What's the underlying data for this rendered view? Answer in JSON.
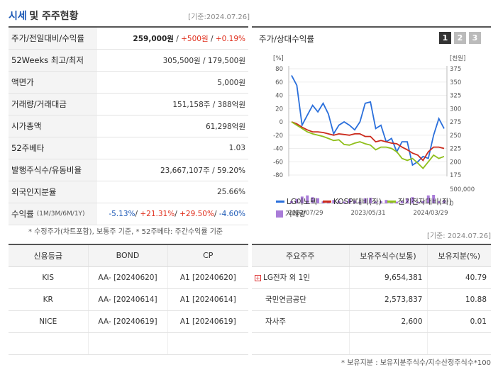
{
  "header": {
    "title_main": "시세",
    "title_sub": "및 주주현황",
    "asof": "[기준:2024.07.26]"
  },
  "summary": [
    {
      "label": "주가/전일대비/수익률",
      "parts": [
        {
          "text": "259,000원",
          "cls": "bold"
        },
        {
          "text": " / ",
          "cls": ""
        },
        {
          "text": "+500원",
          "cls": "red"
        },
        {
          "text": " / ",
          "cls": ""
        },
        {
          "text": "+0.19%",
          "cls": "red"
        }
      ]
    },
    {
      "label": "52Weeks 최고/최저",
      "parts": [
        {
          "text": "305,500원 / 179,500원",
          "cls": ""
        }
      ]
    },
    {
      "label": "액면가",
      "parts": [
        {
          "text": "5,000원",
          "cls": ""
        }
      ]
    },
    {
      "label": "거래량/거래대금",
      "parts": [
        {
          "text": "151,158주 / 388억원",
          "cls": ""
        }
      ]
    },
    {
      "label": "시가총액",
      "parts": [
        {
          "text": "61,298억원",
          "cls": ""
        }
      ]
    },
    {
      "label": "52주베타",
      "parts": [
        {
          "text": "1.03",
          "cls": ""
        }
      ]
    },
    {
      "label": "발행주식수/유동비율",
      "parts": [
        {
          "text": "23,667,107주 / 59.20%",
          "cls": ""
        }
      ]
    },
    {
      "label": "외국인지분율",
      "parts": [
        {
          "text": "25.66%",
          "cls": ""
        }
      ]
    },
    {
      "label": "수익률",
      "label_small": "(1M/3M/6M/1Y)",
      "parts": [
        {
          "text": "-5.13%",
          "cls": "blue"
        },
        {
          "text": "/ ",
          "cls": ""
        },
        {
          "text": "+21.31%",
          "cls": "red"
        },
        {
          "text": "/ ",
          "cls": ""
        },
        {
          "text": "+29.50%",
          "cls": "red"
        },
        {
          "text": "/ ",
          "cls": ""
        },
        {
          "text": "-4.60%",
          "cls": "blue"
        }
      ]
    }
  ],
  "note_summary": "* 수정주가(차트포함), 보통주 기준, * 52주베타: 주간수익률 기준",
  "chart_panel": {
    "title": "주가/상대수익률",
    "pages": [
      "1",
      "2",
      "3"
    ],
    "active_page": 0
  },
  "chart_data": {
    "type": "line",
    "left_axis": {
      "unit": "[%]",
      "min": -80,
      "max": 80,
      "ticks": [
        80,
        60,
        40,
        20,
        0,
        -20,
        -40,
        -60,
        -80
      ]
    },
    "right_axis": {
      "unit": "[천원]",
      "min": 175,
      "max": 375,
      "ticks": [
        375,
        350,
        325,
        300,
        275,
        250,
        225,
        200,
        175
      ]
    },
    "volume_axis": {
      "ticks": [
        "500,000",
        "0"
      ],
      "max": 500000
    },
    "x_labels": [
      "2022/07/29",
      "2023/05/31",
      "2024/03/29"
    ],
    "series": [
      {
        "name": "LG이노텍",
        "color": "#2a6fdb",
        "axis": "left",
        "values": [
          70,
          55,
          -5,
          10,
          25,
          15,
          28,
          12,
          -18,
          -5,
          0,
          -5,
          -12,
          0,
          28,
          30,
          -10,
          -5,
          -30,
          -25,
          -45,
          -30,
          -30,
          -65,
          -60,
          -52,
          -55,
          -20,
          5,
          -10
        ]
      },
      {
        "name": "KOSPI대비(좌)",
        "color": "#cc2b1d",
        "axis": "left",
        "values": [
          0,
          -3,
          -8,
          -12,
          -15,
          -15,
          -16,
          -18,
          -20,
          -18,
          -19,
          -20,
          -18,
          -18,
          -22,
          -22,
          -30,
          -28,
          -30,
          -32,
          -33,
          -38,
          -42,
          -47,
          -50,
          -58,
          -45,
          -38,
          -38,
          -40
        ]
      },
      {
        "name": "전기전자대비(좌)",
        "color": "#8fbf1a",
        "axis": "left",
        "values": [
          0,
          -5,
          -10,
          -15,
          -18,
          -20,
          -22,
          -25,
          -28,
          -27,
          -34,
          -35,
          -32,
          -30,
          -33,
          -35,
          -42,
          -38,
          -38,
          -40,
          -45,
          -55,
          -58,
          -55,
          -62,
          -70,
          -60,
          -50,
          -55,
          -52
        ]
      },
      {
        "name": "거래량",
        "color": "#a97cd8",
        "axis": "volume",
        "values": [
          80000,
          160000,
          240000,
          280000,
          220000,
          180000,
          70000,
          60000,
          120000,
          90000,
          60000,
          150000,
          100000,
          60000,
          180000,
          200000,
          60000,
          80000,
          120000,
          90000,
          60000,
          80000,
          180000,
          220000,
          60000,
          80000,
          280000,
          300000,
          80000,
          120000
        ]
      }
    ]
  },
  "note_chart": "[기준: 2024.07.26]",
  "credit": {
    "headers": [
      "신용등급",
      "BOND",
      "CP"
    ],
    "rows": [
      [
        "KIS",
        "AA-  [20240620]",
        "A1  [20240620]"
      ],
      [
        "KR",
        "AA-  [20240614]",
        "A1  [20240614]"
      ],
      [
        "NICE",
        "AA-  [20240619]",
        "A1  [20240619]"
      ],
      [
        "",
        "",
        ""
      ]
    ]
  },
  "holders": {
    "headers": [
      "주요주주",
      "보유주식수(보통)",
      "보유지분(%)"
    ],
    "rows": [
      {
        "name": "LG전자 외 1인",
        "expand": true,
        "shares": "9,654,381",
        "pct": "40.79"
      },
      {
        "name": "국민연금공단",
        "expand": false,
        "shares": "2,573,837",
        "pct": "10.88"
      },
      {
        "name": "자사주",
        "expand": false,
        "shares": "2,600",
        "pct": "0.01"
      },
      {
        "name": "",
        "expand": false,
        "shares": "",
        "pct": ""
      }
    ]
  },
  "note_holders": "* 보유지분 : 보유지분주식수/지수산정주식수*100",
  "icons": {
    "expand": "plus-square-icon"
  }
}
